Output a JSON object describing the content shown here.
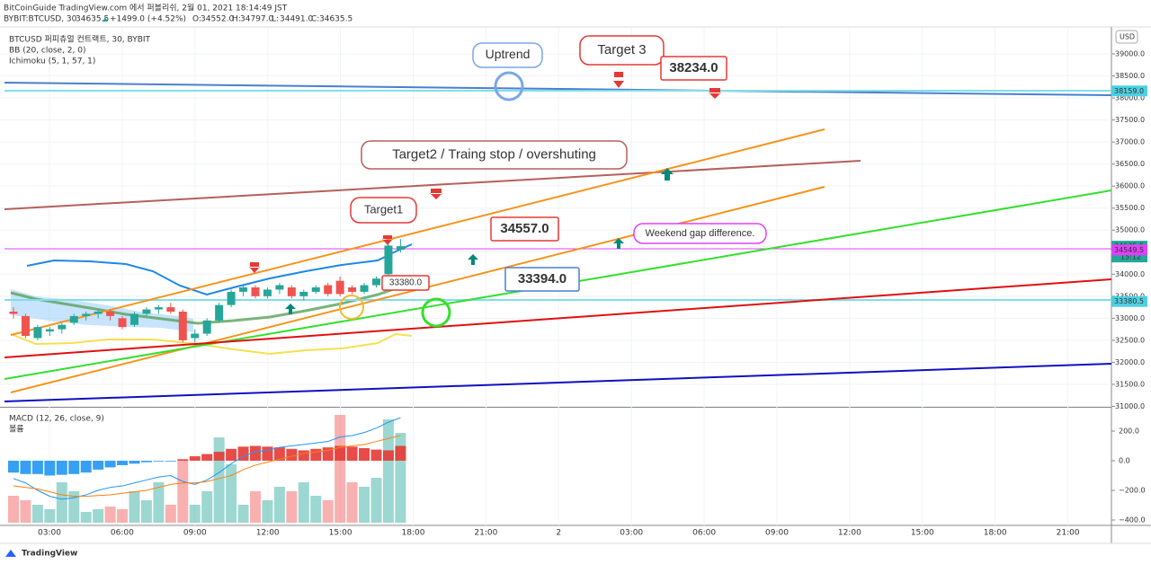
{
  "header": {
    "publish": "BitCoinGuide TradingView.com 에서 퍼블리쉬, 2월 01, 2021 18:14:49 JST",
    "symbol": "BYBIT:BTCUSD, 30",
    "last": "34635.5",
    "change": "+1499.0 (+4.52%)",
    "ohlc": [
      "O:",
      "34552.0",
      "H:",
      "34797.0",
      "L:",
      "34491.0",
      "C:",
      "34635.5"
    ]
  },
  "legend": [
    "BTCUSD 퍼피츄얼 컨트랙트, 30, BYBIT",
    "BB (20, close, 2, 0)",
    "Ichimoku (5, 1, 57, 1)"
  ],
  "price_axis": {
    "unit": "USD",
    "ticks": [
      {
        "value": 31000,
        "label": "31000.0"
      },
      {
        "value": 31500,
        "label": "31500.0"
      },
      {
        "value": 32000,
        "label": "32000.0"
      },
      {
        "value": 32500,
        "label": "32500.0"
      },
      {
        "value": 33000,
        "label": "33000.0"
      },
      {
        "value": 33500,
        "label": "33500.0"
      },
      {
        "value": 34000,
        "label": "34000.0"
      },
      {
        "value": 34500,
        "label": "34500.0"
      },
      {
        "value": 35000,
        "label": "35000.0"
      },
      {
        "value": 35500,
        "label": "35500.0"
      },
      {
        "value": 36000,
        "label": "36000.0"
      },
      {
        "value": 36500,
        "label": "36500.0"
      },
      {
        "value": 37000,
        "label": "37000.0"
      },
      {
        "value": 37500,
        "label": "37500.0"
      },
      {
        "value": 38000,
        "label": "38000.0"
      },
      {
        "value": 38500,
        "label": "38500.0"
      },
      {
        "value": 39000,
        "label": "39000.0"
      }
    ]
  },
  "price_tags": [
    {
      "value": 38159,
      "label": "38159.0",
      "color": "#4dd0e1"
    },
    {
      "value": 34635.5,
      "label": "34635.5",
      "color": "#26a69a"
    },
    {
      "value": 34549.5,
      "label": "34549.5",
      "color": "#e040fb"
    },
    {
      "value": 33380.5,
      "label": "33380.5",
      "color": "#4dd0e1"
    }
  ],
  "countdown": "15:12",
  "time_axis": [
    "03:00",
    "06:00",
    "09:00",
    "12:00",
    "15:00",
    "18:00",
    "21:00",
    "2",
    "03:00",
    "06:00",
    "09:00",
    "12:00",
    "15:00",
    "18:00",
    "21:00"
  ],
  "candles": [
    [
      33150,
      33250,
      33000,
      33100
    ],
    [
      33050,
      33100,
      32550,
      32600
    ],
    [
      32550,
      32850,
      32500,
      32800
    ],
    [
      32700,
      32800,
      32600,
      32750
    ],
    [
      32750,
      32900,
      32650,
      32850
    ],
    [
      32900,
      33100,
      32850,
      33050
    ],
    [
      33050,
      33150,
      32950,
      33100
    ],
    [
      33100,
      33200,
      33000,
      33150
    ],
    [
      33150,
      33200,
      32950,
      33050
    ],
    [
      33000,
      33050,
      32750,
      32800
    ],
    [
      32850,
      33150,
      32800,
      33100
    ],
    [
      33100,
      33250,
      33050,
      33200
    ],
    [
      33200,
      33300,
      33100,
      33250
    ],
    [
      33250,
      33350,
      33100,
      33150
    ],
    [
      33150,
      33200,
      32450,
      32500
    ],
    [
      32550,
      32750,
      32450,
      32650
    ],
    [
      32650,
      33000,
      32600,
      32950
    ],
    [
      32950,
      33350,
      32900,
      33300
    ],
    [
      33300,
      33650,
      33250,
      33600
    ],
    [
      33600,
      33750,
      33500,
      33700
    ],
    [
      33700,
      33750,
      33450,
      33500
    ],
    [
      33500,
      33700,
      33450,
      33650
    ],
    [
      33650,
      33800,
      33550,
      33750
    ],
    [
      33700,
      33750,
      33450,
      33500
    ],
    [
      33500,
      33650,
      33400,
      33600
    ],
    [
      33600,
      33750,
      33550,
      33700
    ],
    [
      33750,
      33800,
      33500,
      33550
    ],
    [
      33850,
      33950,
      33500,
      33550
    ],
    [
      33700,
      33750,
      33550,
      33600
    ],
    [
      33600,
      33800,
      33550,
      33750
    ],
    [
      33750,
      33950,
      33700,
      33900
    ],
    [
      34000,
      34700,
      33950,
      34650
    ],
    [
      34552,
      34797,
      34491,
      34635.5
    ]
  ],
  "volume": [
    30,
    25,
    20,
    15,
    45,
    35,
    12,
    15,
    18,
    15,
    35,
    25,
    45,
    20,
    70,
    20,
    35,
    95,
    65,
    20,
    35,
    25,
    40,
    35,
    45,
    30,
    25,
    120,
    45,
    40,
    50,
    115,
    100
  ],
  "macd": {
    "title": "MACD (12, 26, close, 9)",
    "volume_title": "볼륨",
    "ticks": [
      {
        "value": 200,
        "label": "200.0"
      },
      {
        "value": 0,
        "label": "0.0"
      },
      {
        "value": -200,
        "label": "−200.0"
      },
      {
        "value": -400,
        "label": "−400.0"
      }
    ],
    "histogram": [
      -80,
      -90,
      -90,
      -100,
      -95,
      -90,
      -80,
      -60,
      -45,
      -30,
      -20,
      -10,
      -5,
      -5,
      10,
      30,
      45,
      60,
      80,
      95,
      100,
      95,
      90,
      80,
      70,
      80,
      90,
      100,
      95,
      85,
      75,
      70,
      100
    ],
    "line": [
      -120,
      -150,
      -200,
      -240,
      -260,
      -250,
      -230,
      -200,
      -180,
      -170,
      -150,
      -130,
      -110,
      -100,
      -140,
      -160,
      -130,
      -80,
      -20,
      30,
      60,
      70,
      90,
      100,
      110,
      120,
      130,
      160,
      170,
      190,
      220,
      260,
      290
    ],
    "signal": [
      -170,
      -180,
      -190,
      -210,
      -230,
      -240,
      -240,
      -235,
      -230,
      -220,
      -210,
      -200,
      -180,
      -160,
      -150,
      -150,
      -140,
      -120,
      -100,
      -60,
      -30,
      -10,
      10,
      30,
      50,
      60,
      70,
      90,
      100,
      110,
      130,
      150,
      170
    ]
  },
  "annotations": [
    "Uptrend",
    "Target 3",
    "38234.0",
    "Target2 / Traing stop / overshuting",
    "Target1",
    "34557.0",
    "33394.0",
    "33380.0",
    "Weekend gap difference."
  ],
  "footer": "TradingView"
}
